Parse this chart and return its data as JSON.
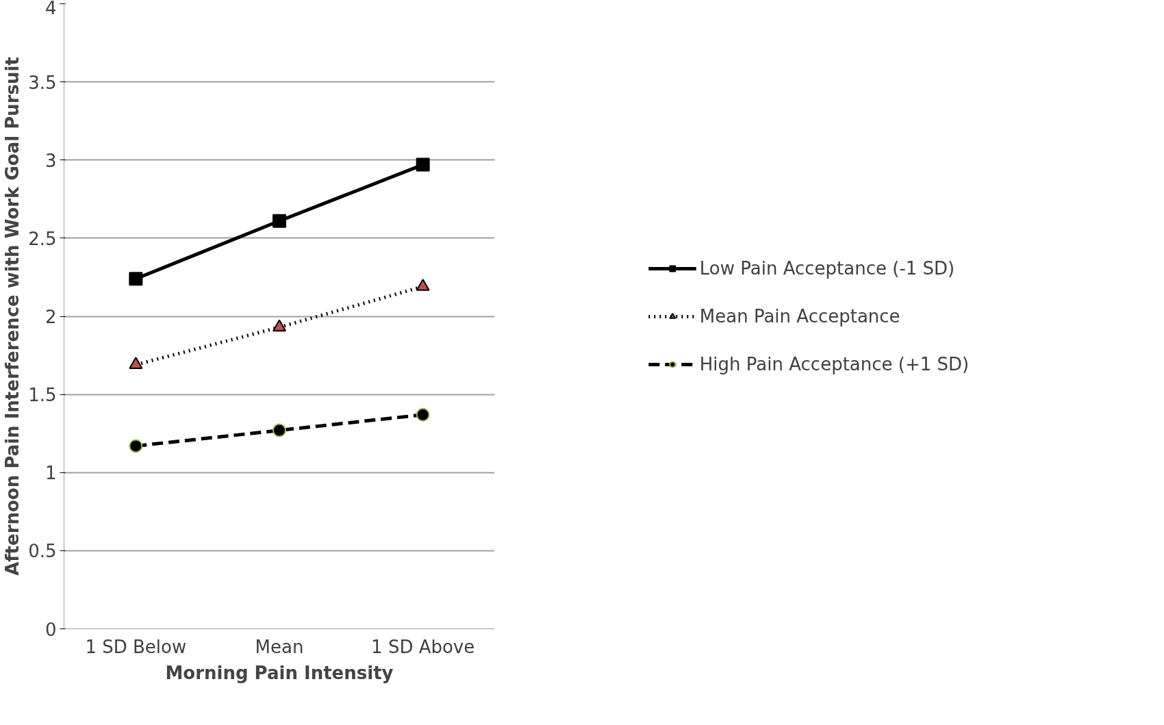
{
  "chart_data": {
    "type": "line",
    "xlabel": "Morning Pain Intensity",
    "ylabel": "Afternoon Pain Interference with Work Goal Pursuit",
    "categories": [
      "1 SD Below",
      "Mean",
      "1 SD Above"
    ],
    "series": [
      {
        "name": "Low Pain Acceptance (-1 SD)",
        "color": "#000000",
        "values": [
          2.24,
          2.61,
          2.97
        ],
        "marker": "square",
        "line_style": "solid"
      },
      {
        "name": "Mean Pain Acceptance",
        "color": "#000000",
        "values": [
          1.69,
          1.93,
          2.19
        ],
        "marker": "triangle",
        "line_style": "dotted"
      },
      {
        "name": "High Pain Acceptance (+1 SD)",
        "color": "#000000",
        "values": [
          1.17,
          1.27,
          1.37
        ],
        "marker": "circle",
        "line_style": "dashed"
      }
    ],
    "ylim": [
      0,
      4
    ],
    "yticks": [
      0,
      0.5,
      1,
      1.5,
      2,
      2.5,
      3,
      3.5,
      4
    ],
    "grid": "y",
    "legend": "right"
  }
}
